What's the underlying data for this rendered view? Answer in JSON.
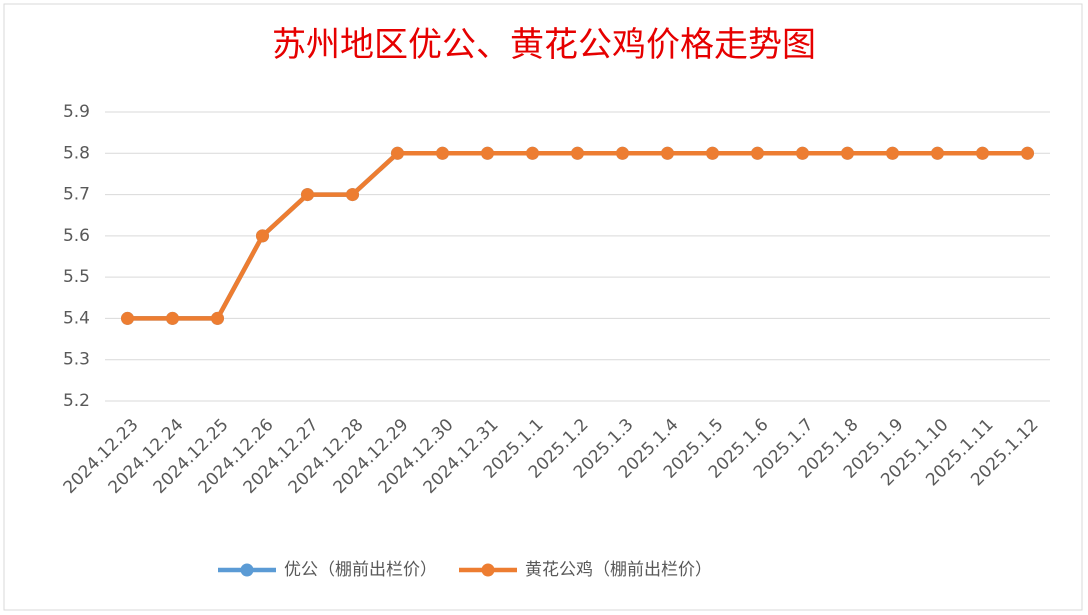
{
  "chart_data": {
    "type": "line",
    "title": "苏州地区优公、黄花公鸡价格走势图",
    "categories": [
      "2024.12.23",
      "2024.12.24",
      "2024.12.25",
      "2024.12.26",
      "2024.12.27",
      "2024.12.28",
      "2024.12.29",
      "2024.12.30",
      "2024.12.31",
      "2025.1.1",
      "2025.1.2",
      "2025.1.3",
      "2025.1.4",
      "2025.1.5",
      "2025.1.6",
      "2025.1.7",
      "2025.1.8",
      "2025.1.9",
      "2025.1.10",
      "2025.1.11",
      "2025.1.12"
    ],
    "series": [
      {
        "name": "优公（棚前出栏价）",
        "color": "#5b9bd5",
        "values": [
          5.4,
          5.4,
          5.4,
          5.6,
          5.7,
          5.7,
          5.8,
          5.8,
          5.8,
          5.8,
          5.8,
          5.8,
          5.8,
          5.8,
          5.8,
          5.8,
          5.8,
          5.8,
          5.8,
          5.8,
          5.8
        ]
      },
      {
        "name": "黄花公鸡（棚前出栏价）",
        "color": "#ed7d31",
        "values": [
          5.4,
          5.4,
          5.4,
          5.6,
          5.7,
          5.7,
          5.8,
          5.8,
          5.8,
          5.8,
          5.8,
          5.8,
          5.8,
          5.8,
          5.8,
          5.8,
          5.8,
          5.8,
          5.8,
          5.8,
          5.8
        ]
      }
    ],
    "ylim": [
      5.2,
      5.9
    ],
    "yticks": [
      5.2,
      5.3,
      5.4,
      5.5,
      5.6,
      5.7,
      5.8,
      5.9
    ],
    "grid": true,
    "legend": "bottom"
  }
}
